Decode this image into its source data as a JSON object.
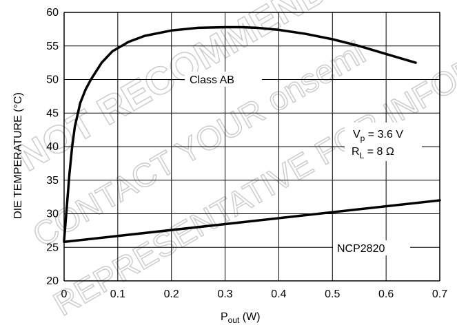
{
  "chart_data": {
    "type": "line",
    "xlabel_main": "P",
    "xlabel_sub": "out",
    "xlabel_unit": " (W)",
    "ylabel": "DIE TEMPERATURE (°C)",
    "xlim": [
      0,
      0.7
    ],
    "ylim": [
      20,
      60
    ],
    "x_ticks": [
      0,
      0.1,
      0.2,
      0.3,
      0.4,
      0.5,
      0.6,
      0.7
    ],
    "x_tick_labels": [
      "0",
      "0.1",
      "0.2",
      "0.3",
      "0.4",
      "0.5",
      "0.6",
      "0.7"
    ],
    "y_ticks": [
      20,
      25,
      30,
      35,
      40,
      45,
      50,
      55,
      60
    ],
    "y_tick_labels": [
      "20",
      "25",
      "30",
      "35",
      "40",
      "45",
      "50",
      "55",
      "60"
    ],
    "grid": true,
    "series": [
      {
        "name": "Class AB",
        "x": [
          0,
          0.005,
          0.01,
          0.015,
          0.02,
          0.03,
          0.04,
          0.05,
          0.07,
          0.09,
          0.12,
          0.15,
          0.2,
          0.25,
          0.3,
          0.33,
          0.36,
          0.4,
          0.45,
          0.5,
          0.55,
          0.6,
          0.655
        ],
        "y": [
          26,
          31,
          36,
          40,
          43,
          46.5,
          48.5,
          50,
          52.5,
          54.2,
          55.6,
          56.5,
          57.3,
          57.7,
          57.8,
          57.8,
          57.7,
          57.4,
          56.8,
          56,
          55,
          53.8,
          52.5
        ]
      },
      {
        "name": "NCP2820",
        "x": [
          0,
          0.7
        ],
        "y": [
          25.8,
          32
        ]
      }
    ],
    "annotations": [
      {
        "text": "Class AB"
      },
      {
        "text": "NCP2820"
      }
    ],
    "conditions": {
      "vp_main": "V",
      "vp_sub": "p",
      "vp_value": " = 3.6 V",
      "rl_main": "R",
      "rl_sub": "L",
      "rl_value": " = 8 Ω"
    }
  },
  "watermark": {
    "lines": [
      "NOT RECOMMENDED FOR NEW DESIGN",
      "CONTACT YOUR onsemi",
      "REPRESENTATIVE FOR INFORMATION"
    ]
  }
}
